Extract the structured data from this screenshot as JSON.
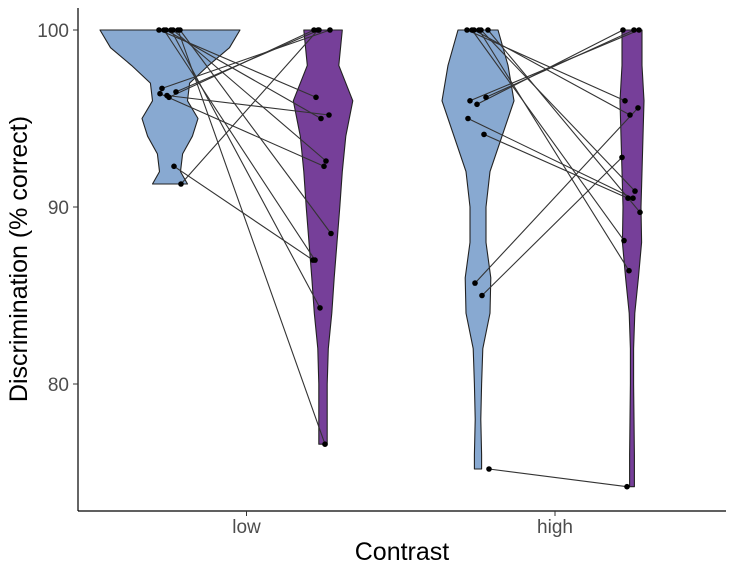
{
  "chart_data": {
    "type": "violin",
    "xlabel": "Contrast",
    "ylabel": "Discrimination (% correct)",
    "ylim": [
      73.0,
      101.5
    ],
    "yticks": [
      80,
      90,
      100
    ],
    "grid": false,
    "legend": "none",
    "categories": [
      "low",
      "high"
    ],
    "fill_colors": {
      "left": "#88a9d1",
      "right": "#763f99"
    },
    "groups": [
      {
        "category": "low",
        "left_distribution": {
          "y": [
            100,
            99,
            98,
            97,
            96,
            95,
            94,
            93,
            92,
            91.3
          ],
          "width": [
            1.0,
            0.85,
            0.55,
            0.28,
            0.25,
            0.4,
            0.32,
            0.18,
            0.15,
            0.25
          ]
        },
        "right_distribution": {
          "y": [
            100,
            98,
            96,
            94,
            92,
            90,
            88,
            86,
            84,
            82,
            80,
            78,
            76.6
          ],
          "width": [
            0.55,
            0.45,
            0.85,
            0.65,
            0.55,
            0.48,
            0.4,
            0.32,
            0.25,
            0.15,
            0.12,
            0.12,
            0.12
          ]
        },
        "pairs": [
          [
            100,
            96.2
          ],
          [
            100,
            95.0
          ],
          [
            100,
            92.6
          ],
          [
            100,
            88.5
          ],
          [
            100,
            87.0
          ],
          [
            100,
            84.3
          ],
          [
            100,
            76.6
          ],
          [
            96.7,
            100
          ],
          [
            96.2,
            100
          ],
          [
            96.5,
            100
          ],
          [
            96.4,
            92.3
          ],
          [
            96.3,
            95.2
          ],
          [
            92.3,
            87.0
          ],
          [
            91.3,
            100
          ]
        ]
      },
      {
        "category": "high",
        "left_distribution": {
          "y": [
            100,
            98,
            96,
            94,
            92,
            90,
            88,
            86,
            84,
            82,
            80,
            78,
            76,
            75.2
          ],
          "width": [
            0.5,
            0.75,
            0.9,
            0.6,
            0.3,
            0.2,
            0.2,
            0.32,
            0.3,
            0.12,
            0.09,
            0.07,
            0.09,
            0.09
          ]
        },
        "right_distribution": {
          "y": [
            100,
            98,
            96,
            94,
            92,
            90,
            88,
            86,
            84,
            82,
            80,
            78,
            76,
            74.2
          ],
          "width": [
            0.5,
            0.5,
            0.6,
            0.55,
            0.5,
            0.45,
            0.48,
            0.32,
            0.14,
            0.08,
            0.08,
            0.1,
            0.12,
            0.12
          ]
        },
        "pairs": [
          [
            100,
            96.0
          ],
          [
            100,
            95.2
          ],
          [
            100,
            90.9
          ],
          [
            100,
            89.7
          ],
          [
            100,
            88.1
          ],
          [
            100,
            86.4
          ],
          [
            96.2,
            100
          ],
          [
            96.0,
            100
          ],
          [
            95.8,
            100
          ],
          [
            94.1,
            90.5
          ],
          [
            95.0,
            90.5
          ],
          [
            85.7,
            95.6
          ],
          [
            85.0,
            92.8
          ],
          [
            75.2,
            74.2
          ]
        ]
      }
    ]
  }
}
